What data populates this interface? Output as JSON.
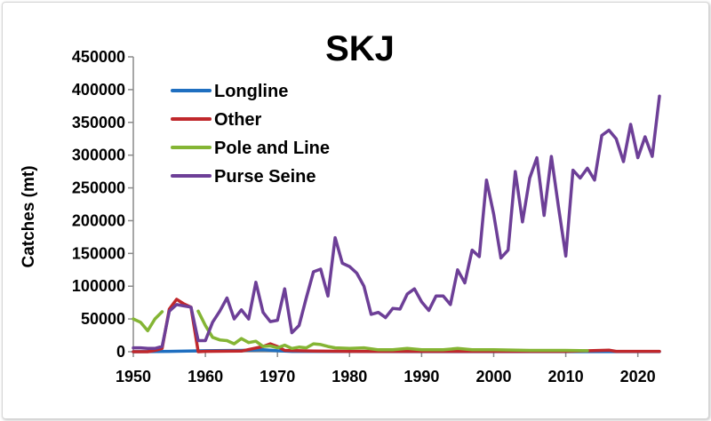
{
  "chart_data": {
    "type": "line",
    "title": "SKJ",
    "xlabel": "",
    "ylabel": "Catches (mt)",
    "xlim": [
      1950,
      2023
    ],
    "ylim": [
      0,
      450000
    ],
    "xticks": [
      "1950",
      "1960",
      "1970",
      "1980",
      "1990",
      "2000",
      "2010",
      "2020"
    ],
    "yticks": [
      "0",
      "50000",
      "100000",
      "150000",
      "200000",
      "250000",
      "300000",
      "350000",
      "400000",
      "450000"
    ],
    "legend_position": "upper-left",
    "grid": false,
    "series": [
      {
        "name": "Longline",
        "color": "#1f6fc0",
        "points": [
          [
            1950,
            0
          ],
          [
            1955,
            500
          ],
          [
            1960,
            1500
          ],
          [
            1965,
            2000
          ],
          [
            1968,
            3000
          ],
          [
            1970,
            1500
          ],
          [
            1972,
            500
          ],
          [
            1980,
            300
          ],
          [
            1990,
            200
          ],
          [
            2000,
            200
          ],
          [
            2010,
            200
          ],
          [
            2023,
            200
          ]
        ]
      },
      {
        "name": "Other",
        "color": "#c0282c",
        "points": [
          [
            1950,
            0
          ],
          [
            1951,
            0
          ],
          [
            1952,
            0
          ],
          [
            1953,
            2000
          ],
          [
            1954,
            5000
          ],
          [
            1955,
            65000
          ],
          [
            1956,
            80000
          ],
          [
            1957,
            73000
          ],
          [
            1958,
            68000
          ],
          [
            1959,
            0
          ],
          [
            1960,
            500
          ],
          [
            1965,
            1000
          ],
          [
            1968,
            8000
          ],
          [
            1969,
            12000
          ],
          [
            1970,
            8000
          ],
          [
            1971,
            2000
          ],
          [
            1975,
            1000
          ],
          [
            1980,
            500
          ],
          [
            1990,
            500
          ],
          [
            2000,
            500
          ],
          [
            2010,
            500
          ],
          [
            2016,
            2500
          ],
          [
            2017,
            500
          ],
          [
            2023,
            500
          ]
        ]
      },
      {
        "name": "Pole and Line",
        "color": "#84b534",
        "segments": [
          [
            [
              1950,
              50000
            ],
            [
              1951,
              45000
            ],
            [
              1952,
              32000
            ],
            [
              1953,
              50000
            ],
            [
              1954,
              61000
            ]
          ],
          [
            [
              1959,
              62000
            ],
            [
              1960,
              40000
            ],
            [
              1961,
              22000
            ],
            [
              1962,
              18000
            ],
            [
              1963,
              17000
            ],
            [
              1964,
              12000
            ],
            [
              1965,
              20000
            ],
            [
              1966,
              14000
            ],
            [
              1967,
              16000
            ],
            [
              1968,
              8000
            ],
            [
              1969,
              9000
            ],
            [
              1970,
              6000
            ],
            [
              1971,
              10000
            ],
            [
              1972,
              5000
            ],
            [
              1973,
              7000
            ],
            [
              1974,
              6000
            ],
            [
              1975,
              12000
            ],
            [
              1976,
              11000
            ],
            [
              1977,
              8000
            ],
            [
              1978,
              6000
            ],
            [
              1980,
              5000
            ],
            [
              1982,
              6000
            ],
            [
              1984,
              3000
            ],
            [
              1986,
              3000
            ],
            [
              1988,
              5000
            ],
            [
              1990,
              3000
            ],
            [
              1993,
              3000
            ],
            [
              1995,
              5000
            ],
            [
              1997,
              3000
            ],
            [
              2000,
              3000
            ],
            [
              2005,
              2000
            ],
            [
              2010,
              2000
            ],
            [
              2013,
              1500
            ]
          ]
        ]
      },
      {
        "name": "Purse Seine",
        "color": "#6d3f97",
        "points": [
          [
            1950,
            6000
          ],
          [
            1951,
            6000
          ],
          [
            1952,
            5000
          ],
          [
            1953,
            5000
          ],
          [
            1954,
            8000
          ],
          [
            1955,
            62000
          ],
          [
            1956,
            72000
          ],
          [
            1957,
            70000
          ],
          [
            1958,
            68000
          ],
          [
            1959,
            17000
          ],
          [
            1960,
            17000
          ],
          [
            1961,
            45000
          ],
          [
            1962,
            62000
          ],
          [
            1963,
            82000
          ],
          [
            1964,
            50000
          ],
          [
            1965,
            64000
          ],
          [
            1966,
            50000
          ],
          [
            1967,
            106000
          ],
          [
            1968,
            60000
          ],
          [
            1969,
            46000
          ],
          [
            1970,
            48000
          ],
          [
            1971,
            96000
          ],
          [
            1972,
            29000
          ],
          [
            1973,
            40000
          ],
          [
            1974,
            82000
          ],
          [
            1975,
            122000
          ],
          [
            1976,
            126000
          ],
          [
            1977,
            85000
          ],
          [
            1978,
            174000
          ],
          [
            1979,
            135000
          ],
          [
            1980,
            130000
          ],
          [
            1981,
            120000
          ],
          [
            1982,
            100000
          ],
          [
            1983,
            57000
          ],
          [
            1984,
            60000
          ],
          [
            1985,
            52000
          ],
          [
            1986,
            66000
          ],
          [
            1987,
            65000
          ],
          [
            1988,
            88000
          ],
          [
            1989,
            96000
          ],
          [
            1990,
            76000
          ],
          [
            1991,
            63000
          ],
          [
            1992,
            85000
          ],
          [
            1993,
            85000
          ],
          [
            1994,
            72000
          ],
          [
            1995,
            125000
          ],
          [
            1996,
            105000
          ],
          [
            1997,
            155000
          ],
          [
            1998,
            145000
          ],
          [
            1999,
            262000
          ],
          [
            2000,
            210000
          ],
          [
            2001,
            143000
          ],
          [
            2002,
            155000
          ],
          [
            2003,
            275000
          ],
          [
            2004,
            198000
          ],
          [
            2005,
            265000
          ],
          [
            2006,
            296000
          ],
          [
            2007,
            208000
          ],
          [
            2008,
            298000
          ],
          [
            2009,
            220000
          ],
          [
            2010,
            146000
          ],
          [
            2011,
            277000
          ],
          [
            2012,
            265000
          ],
          [
            2013,
            280000
          ],
          [
            2014,
            262000
          ],
          [
            2015,
            330000
          ],
          [
            2016,
            338000
          ],
          [
            2017,
            325000
          ],
          [
            2018,
            290000
          ],
          [
            2019,
            347000
          ],
          [
            2020,
            296000
          ],
          [
            2021,
            328000
          ],
          [
            2022,
            298000
          ],
          [
            2023,
            390000
          ]
        ]
      }
    ]
  }
}
